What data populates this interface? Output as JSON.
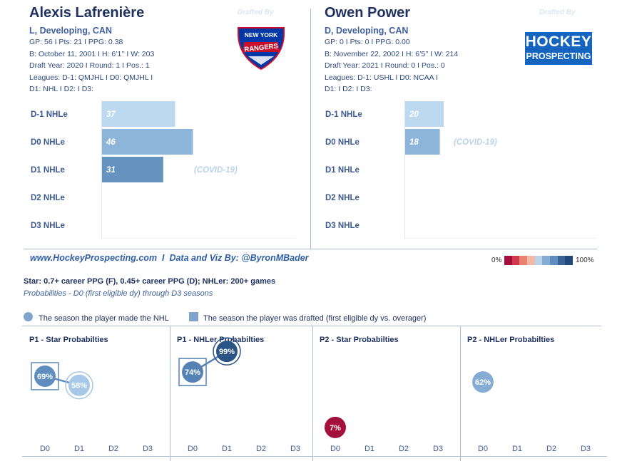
{
  "players": [
    {
      "name": "Alexis Lafrenière",
      "position_line": "L, Developing, CAN",
      "stats_line": "GP: 56 I Pts: 21 I PPG: 0.38",
      "bio_line": "B: October 11, 2001 I H: 6’1’’ I W: 203",
      "draft_line": "Draft Year: 2020 I Round: 1 I Pos.: 1",
      "leagues_line1": "Leagues: D-1: QMJHL I D0: QMJHL I",
      "leagues_line2": "D1: NHL I D2:  I D3:",
      "drafted_by": "Drafted By",
      "team_logo_icon": "new-york-rangers-logo",
      "team_logo_text": {
        "top": "NEW YORK",
        "bottom": "RANGERS"
      },
      "covid_note": "(COVID-19)"
    },
    {
      "name": "Owen Power",
      "position_line": "D, Developing, CAN",
      "stats_line": "GP: 0 I Pts: 0 I PPG: 0.00",
      "bio_line": "B: November 22, 2002 I H: 6’5’’ I W: 214",
      "draft_line": "Draft Year: 2021 I Round: 0 I Pos.: 0",
      "leagues_line1": "Leagues: D-1: USHL I D0: NCAA I",
      "leagues_line2": "D1:  I D2:  I D3:",
      "drafted_by": "Drafted By",
      "team_logo_icon": "hockey-prospecting-logo",
      "team_logo_text": {
        "top": "HOCKEY",
        "bottom": "PROSPECTING"
      },
      "covid_note": "(COVID-19)"
    }
  ],
  "footer": {
    "site": "www.HockeyProspecting.com",
    "sep": "I",
    "credit": "Data and Viz By: @ByronMBader"
  },
  "color_scale": {
    "min_label": "0%",
    "max_label": "100%",
    "colors": [
      "#a50f3b",
      "#d23a4c",
      "#e8836f",
      "#f2b7a6",
      "#b9d3ea",
      "#84acd4",
      "#5f8dbd",
      "#3a6497",
      "#1f4a7a"
    ]
  },
  "definition": "Star: 0.7+ career PPG (F), 0.45+ career PPG (D); NHLer: 200+ games",
  "subtitle": "Probabilities - D0 (first eligible dy) through D3 seasons",
  "legend": {
    "made_nhl": "The season the player made the NHL",
    "drafted": "The season the player was drafted (first eligible dy vs. overager)"
  },
  "chart_data": [
    {
      "type": "bar",
      "title": "Alexis Lafrenière NHLe",
      "categories": [
        "D-1 NHLe",
        "D0 NHLe",
        "D1 NHLe",
        "D2 NHLe",
        "D3 NHLe"
      ],
      "values": [
        37,
        46,
        31,
        null,
        null
      ],
      "colors": [
        "#bcd9ef",
        "#8db5da",
        "#6593bf",
        null,
        null
      ],
      "xlim": [
        0,
        50
      ]
    },
    {
      "type": "bar",
      "title": "Owen Power NHLe",
      "categories": [
        "D-1 NHLe",
        "D0 NHLe",
        "D1 NHLe",
        "D2 NHLe",
        "D3 NHLe"
      ],
      "values": [
        20,
        18,
        null,
        null,
        null
      ],
      "colors": [
        "#bcd9ef",
        "#8db5da",
        null,
        null,
        null
      ],
      "xlim": [
        0,
        50
      ]
    },
    {
      "type": "scatter",
      "title": "P1 - Star Probabilties",
      "categories": [
        "D0",
        "D1",
        "D2",
        "D3"
      ],
      "points": [
        {
          "x": "D0",
          "value": 69,
          "label": "69%",
          "color": "#5f8dbd",
          "drafted": true,
          "made_nhl": false
        },
        {
          "x": "D1",
          "value": 58,
          "label": "58%",
          "color": "#a7c8e6",
          "drafted": false,
          "made_nhl": true
        }
      ],
      "ylim": [
        0,
        100
      ]
    },
    {
      "type": "scatter",
      "title": "P1 - NHLer Probabilties",
      "categories": [
        "D0",
        "D1",
        "D2",
        "D3"
      ],
      "points": [
        {
          "x": "D0",
          "value": 74,
          "label": "74%",
          "color": "#5582b5",
          "drafted": true,
          "made_nhl": false
        },
        {
          "x": "D1",
          "value": 99,
          "label": "99%",
          "color": "#2a5486",
          "drafted": false,
          "made_nhl": true
        }
      ],
      "ylim": [
        0,
        100
      ]
    },
    {
      "type": "scatter",
      "title": "P2 - Star Probabilties",
      "categories": [
        "D0",
        "D1",
        "D2",
        "D3"
      ],
      "points": [
        {
          "x": "D0",
          "value": 7,
          "label": "7%",
          "color": "#a50f3b",
          "drafted": false,
          "made_nhl": false
        }
      ],
      "ylim": [
        0,
        100
      ]
    },
    {
      "type": "scatter",
      "title": "P2 - NHLer Probabilties",
      "categories": [
        "D0",
        "D1",
        "D2",
        "D3"
      ],
      "points": [
        {
          "x": "D0",
          "value": 62,
          "label": "62%",
          "color": "#84acd4",
          "drafted": false,
          "made_nhl": false
        }
      ],
      "ylim": [
        0,
        100
      ]
    }
  ]
}
